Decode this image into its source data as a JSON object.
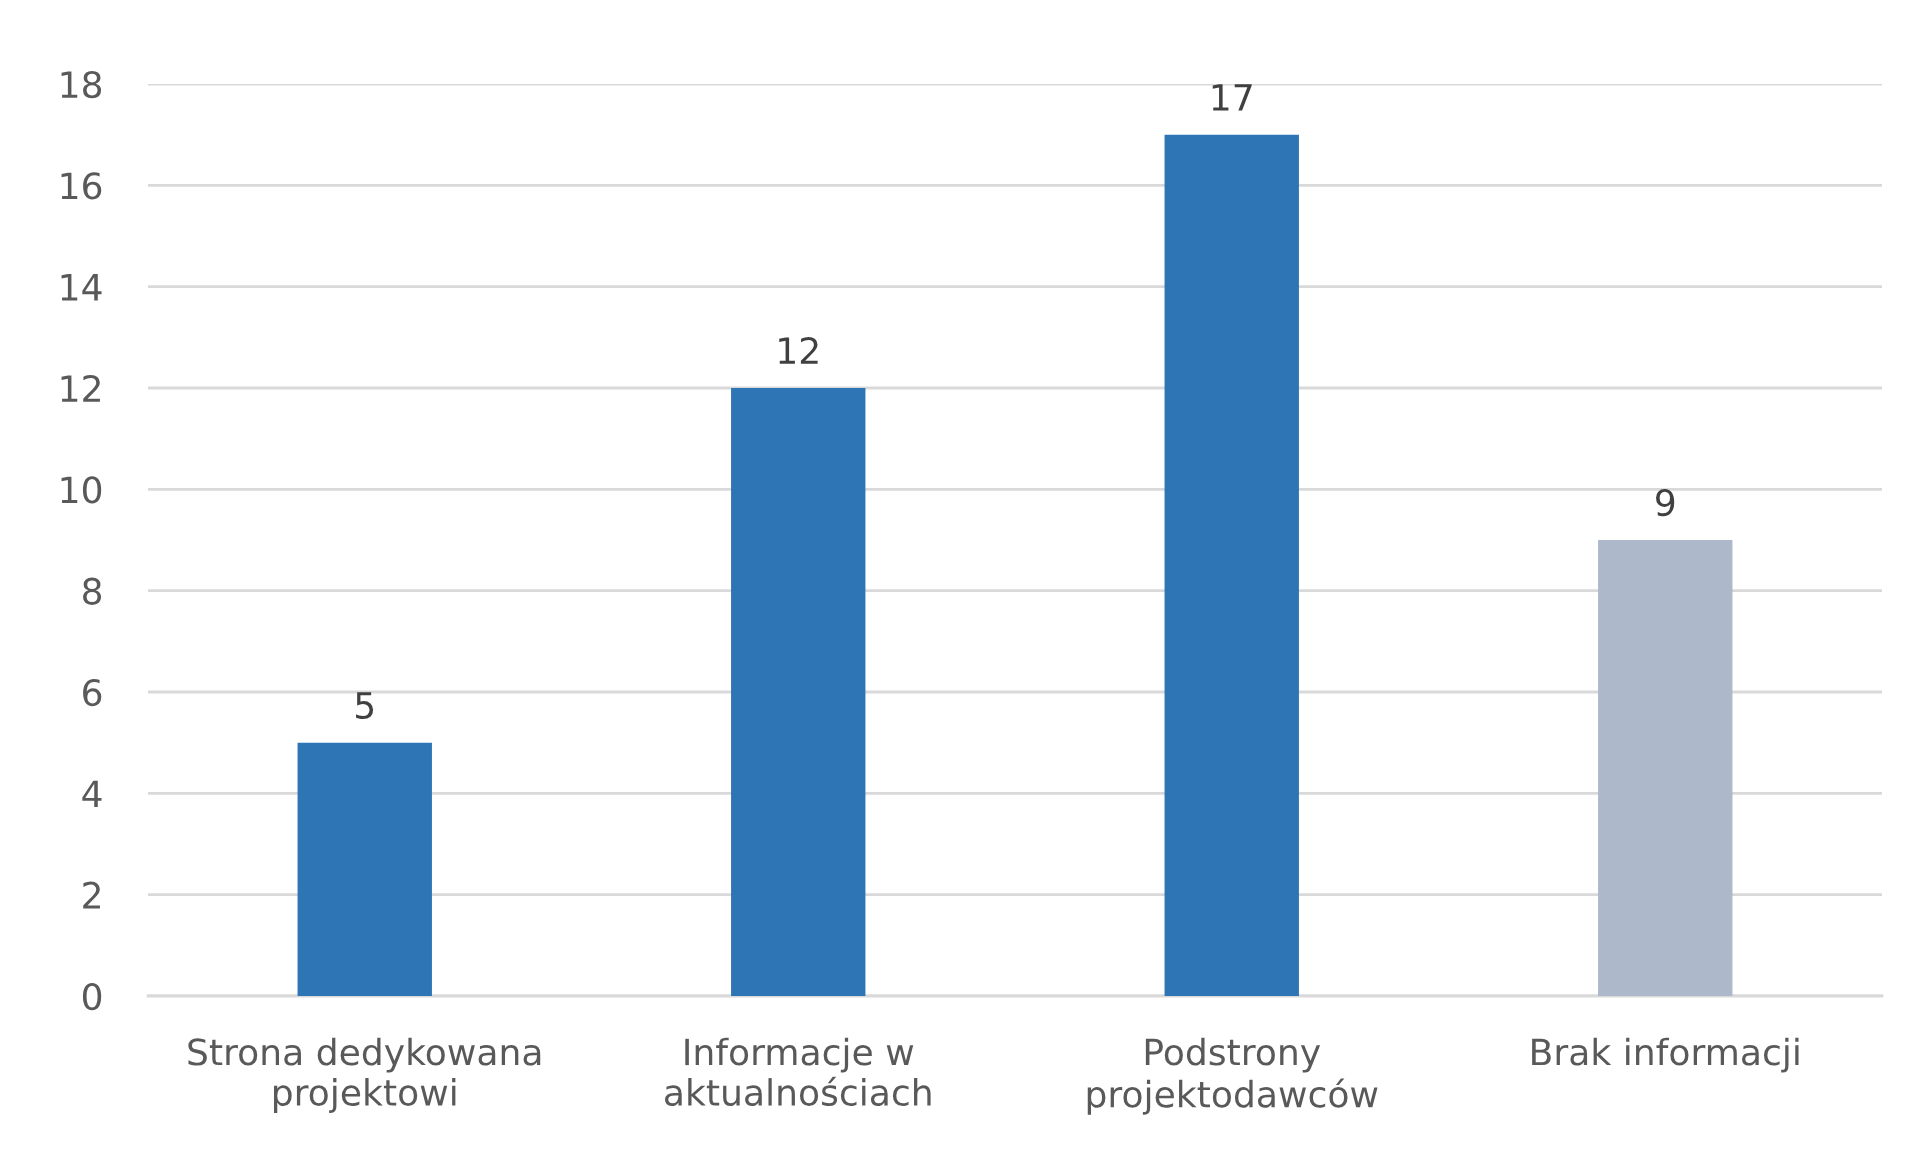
{
  "chart_data": {
    "type": "bar",
    "categories": [
      "Strona dedykowana projektowi",
      "Informacje w aktualnościach",
      "Podstrony projektodawców",
      "Brak informacji"
    ],
    "values": [
      5,
      12,
      17,
      9
    ],
    "colors": [
      "#2e75b6",
      "#2e75b6",
      "#2e75b6",
      "#adb9ca"
    ],
    "ylim": [
      0,
      18
    ],
    "yticks": [
      0,
      2,
      4,
      6,
      8,
      10,
      12,
      14,
      16,
      18
    ],
    "grid": "y",
    "data_labels": true,
    "legend": false
  }
}
